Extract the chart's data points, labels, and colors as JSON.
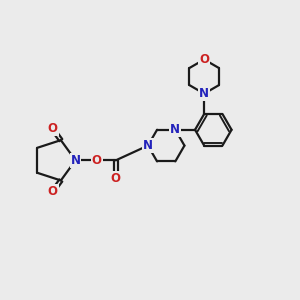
{
  "bg_color": "#ebebeb",
  "bond_color": "#1a1a1a",
  "N_color": "#2222bb",
  "O_color": "#cc2222",
  "line_width": 1.6,
  "font_size_atom": 8.5,
  "fig_w": 3.0,
  "fig_h": 3.0,
  "dpi": 100,
  "xlim": [
    0,
    10
  ],
  "ylim": [
    0,
    10
  ]
}
